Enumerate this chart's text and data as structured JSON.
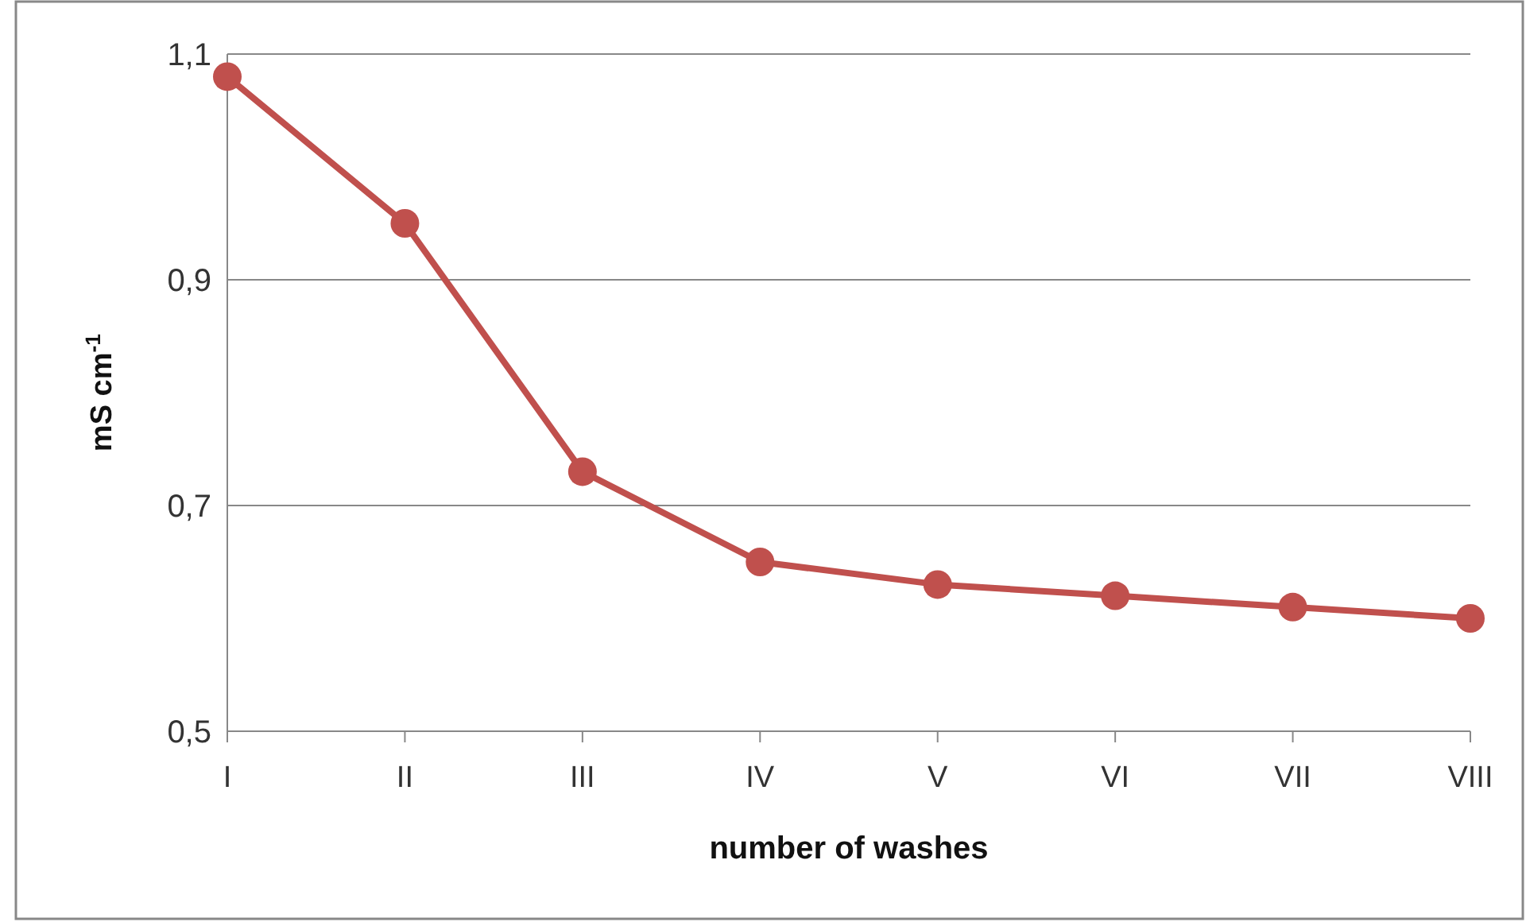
{
  "chart_data": {
    "type": "line",
    "xlabel": "number of washes",
    "ylabel": "mS cm$^{-1}$",
    "categories": [
      "I",
      "II",
      "III",
      "IV",
      "V",
      "VI",
      "VII",
      "VIII"
    ],
    "series": [
      {
        "color": "#c0504d",
        "values": [
          1.08,
          0.95,
          0.73,
          0.65,
          0.63,
          0.62,
          0.61,
          0.6
        ]
      }
    ],
    "ylim": [
      0.5,
      1.1
    ],
    "yticks": [
      {
        "value": 0.5,
        "label": "0,5"
      },
      {
        "value": 0.7,
        "label": "0,7"
      },
      {
        "value": 0.9,
        "label": "0,9"
      },
      {
        "value": 1.1,
        "label": "1,1"
      }
    ],
    "grid": "y",
    "marker": "circle",
    "line_style": "solid"
  }
}
